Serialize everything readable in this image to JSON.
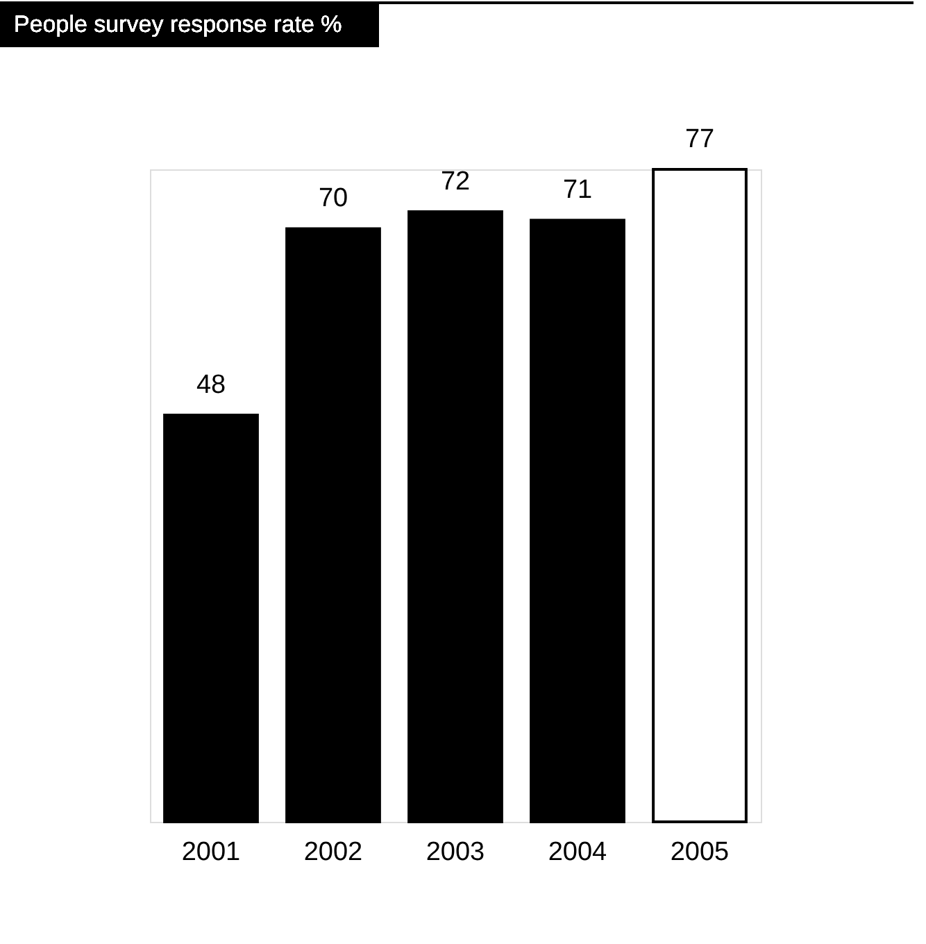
{
  "chart_data": {
    "type": "bar",
    "title": "People survey response rate %",
    "categories": [
      "2001",
      "2002",
      "2003",
      "2004",
      "2005"
    ],
    "values": [
      48,
      70,
      72,
      71,
      77
    ],
    "colors": [
      "#000000",
      "#000000",
      "#000000",
      "#000000",
      "#ffffff"
    ],
    "data_labels": true
  }
}
